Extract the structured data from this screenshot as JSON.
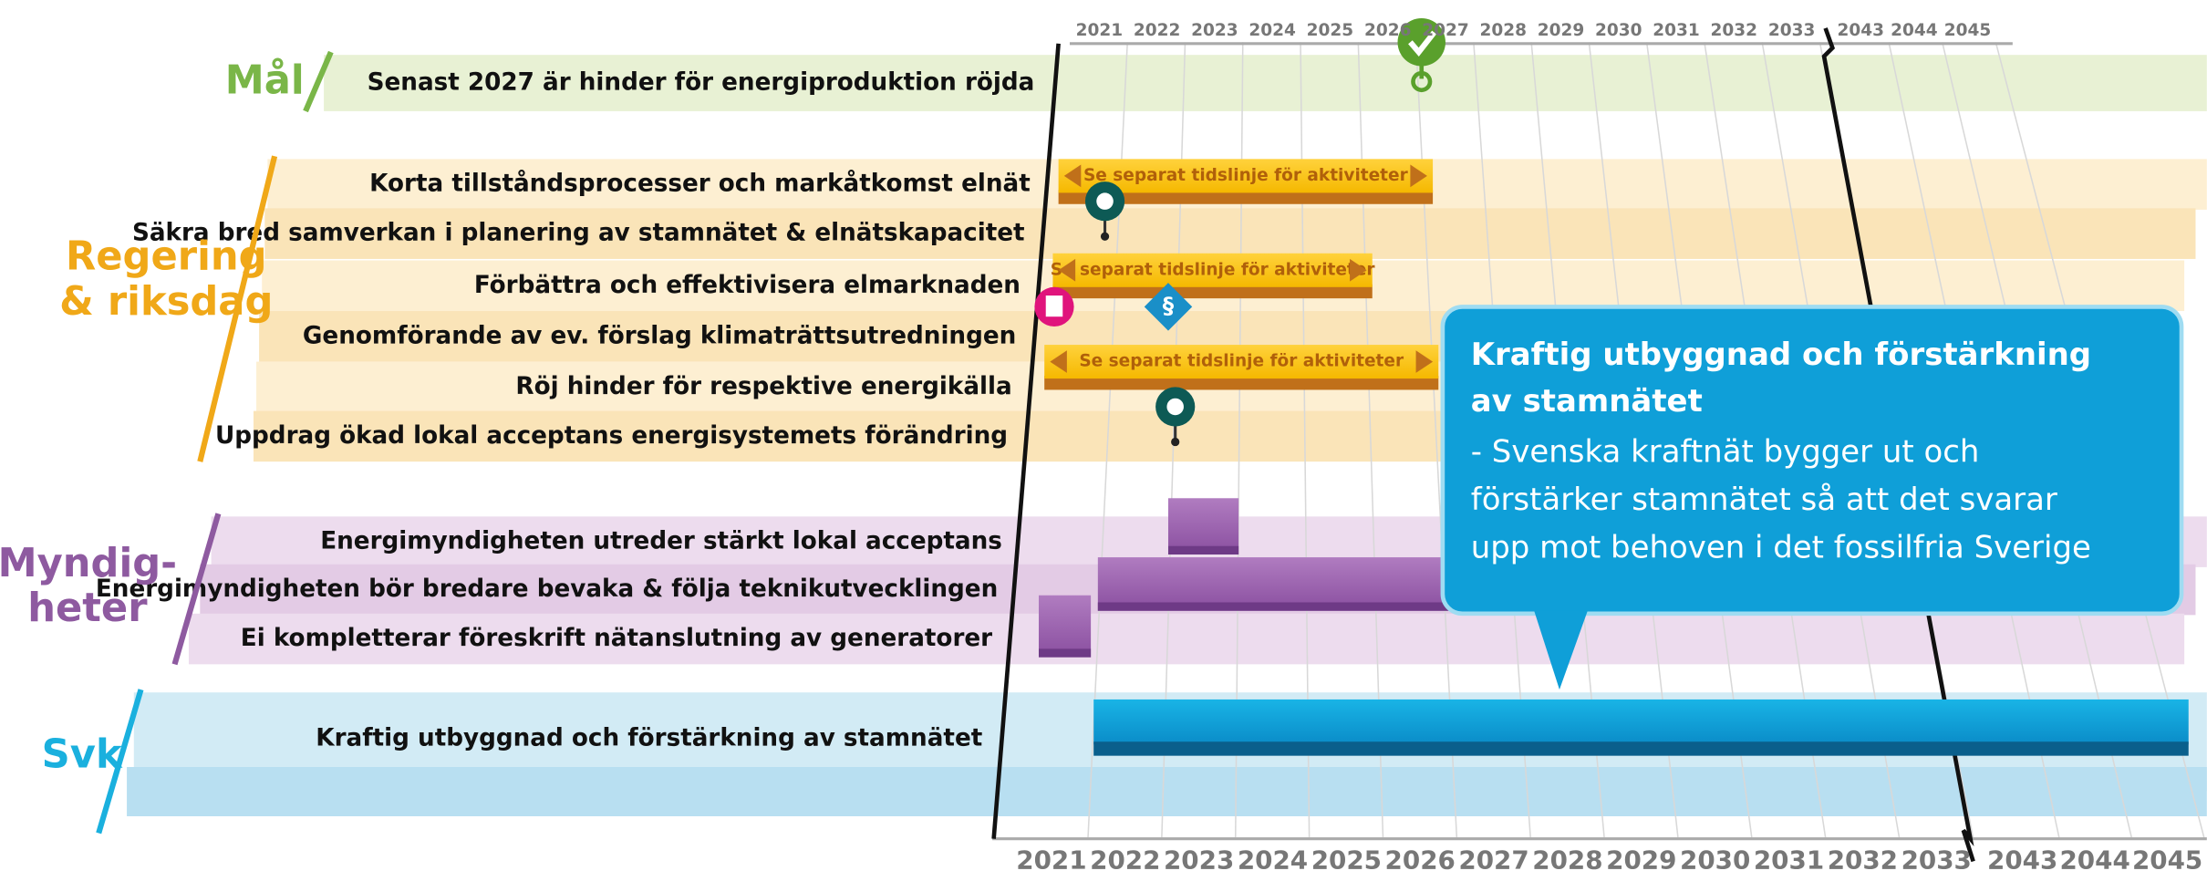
{
  "timeline": {
    "years": [
      "2021",
      "2022",
      "2023",
      "2024",
      "2025",
      "2026",
      "2027",
      "2028",
      "2029",
      "2030",
      "2031",
      "2032",
      "2033",
      "2043",
      "2044",
      "2045"
    ],
    "highlight_years": [
      "2027",
      "2045"
    ]
  },
  "groups": [
    {
      "label": [
        "Mål"
      ],
      "color": "#7ab648",
      "rows": [
        "Senast 2027 är hinder för energiproduktion röjda"
      ]
    },
    {
      "label": [
        "Regering",
        "& riksdag"
      ],
      "color": "#f0a818",
      "rows": [
        "Korta tillståndsprocesser och markåtkomst elnät",
        "Säkra bred samverkan i planering av stamnätet & elnätskapacitet",
        "Förbättra och effektivisera elmarknaden",
        "Genomförande av ev. förslag klimaträttsutredningen",
        "Röj hinder för respektive energikälla",
        "Uppdrag ökad lokal acceptans energisystemets förändring"
      ]
    },
    {
      "label": [
        "Myndig-",
        "heter"
      ],
      "color": "#8e5aa0",
      "rows": [
        "Energimyndigheten utreder stärkt lokal acceptans",
        "Energimyndigheten bör bredare bevaka & följa teknikutvecklingen",
        "Ei kompletterar föreskrift nätanslutning av generatorer"
      ]
    },
    {
      "label": [
        "Svk"
      ],
      "color": "#1ab0de",
      "rows": [
        "Kraftig utbyggnad och förstärkning av stamnätet"
      ]
    }
  ],
  "banners": [
    "Se separat tidslinje för aktiviteter",
    "Se separat tidslinje för aktiviteter",
    "Se separat tidslinje för aktiviteter"
  ],
  "icons": {
    "paragraph": "§"
  },
  "callout": {
    "title": [
      "Kraftig utbyggnad och förstärkning",
      "av stamnätet"
    ],
    "body": [
      "- Svenska kraftnät bygger ut och",
      "förstärker stamnätet så att det svarar",
      "upp mot behoven i det fossilfria Sverige"
    ]
  }
}
